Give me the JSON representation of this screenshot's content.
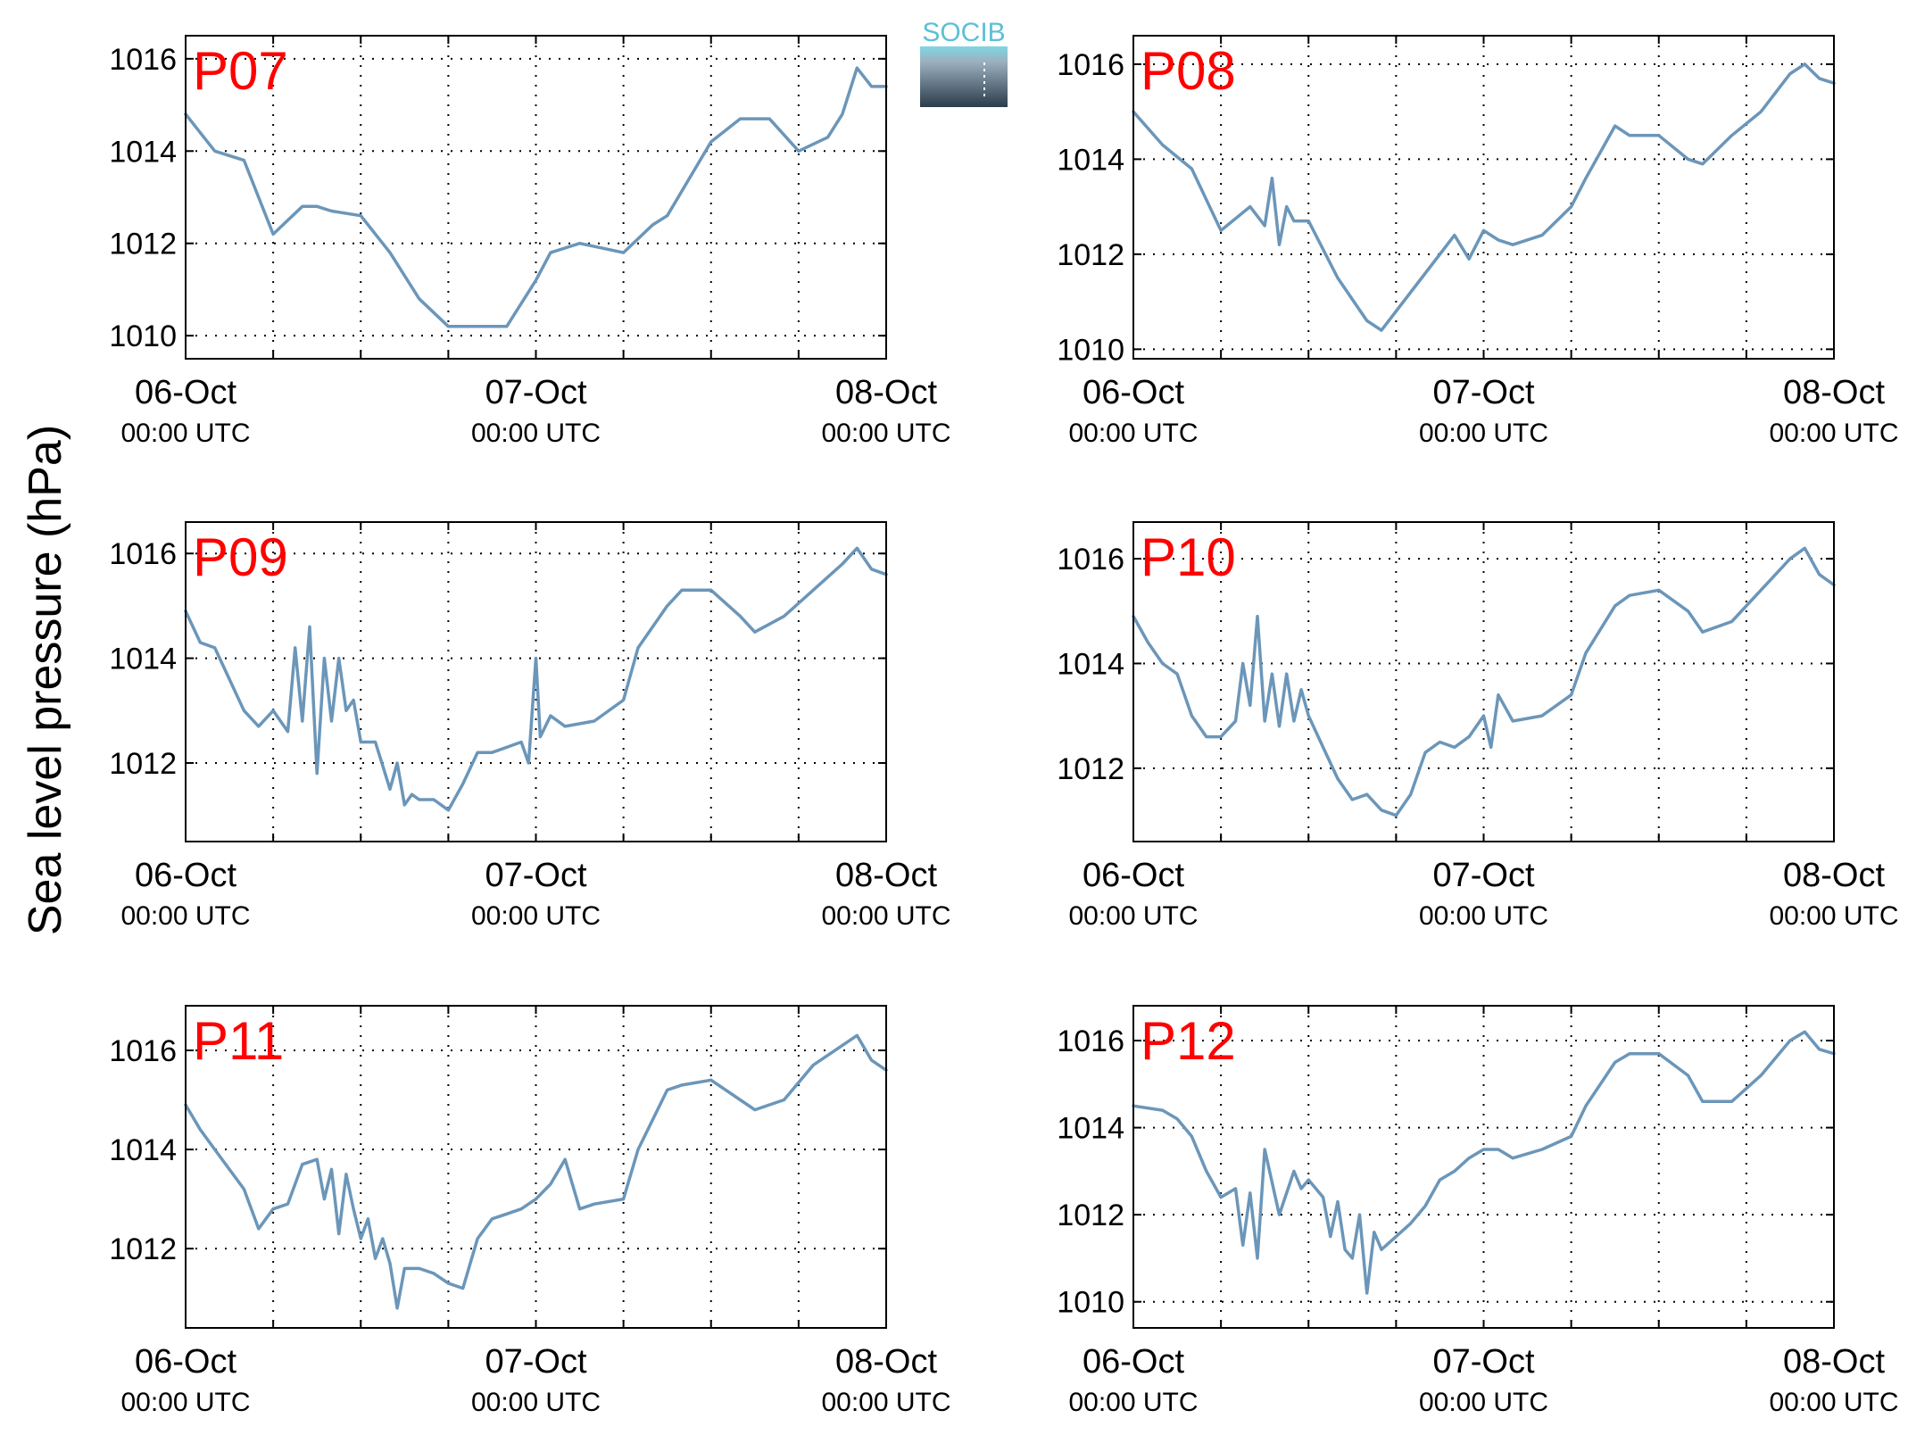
{
  "figure": {
    "ylabel": "Sea level pressure (hPa)",
    "logo_text": "SOCIB",
    "line_color": "#6b96b9",
    "station_label_color": "#ff0000"
  },
  "chart_data": [
    {
      "type": "line",
      "station": "P07",
      "x_ticks": [
        {
          "day": "06-Oct",
          "time": "00:00 UTC"
        },
        {
          "day": "07-Oct",
          "time": "00:00 UTC"
        },
        {
          "day": "08-Oct",
          "time": "00:00 UTC"
        }
      ],
      "ylim": [
        1009.5,
        1016.5
      ],
      "yticks": [
        "1010",
        "1012",
        "1014",
        "1016"
      ],
      "grid": true,
      "hours": [
        0,
        2,
        4,
        6,
        8,
        9,
        10,
        12,
        14,
        16,
        18,
        20,
        22,
        24,
        25,
        27,
        30,
        32,
        33,
        36,
        38,
        40,
        42,
        44,
        45,
        46,
        47,
        48
      ],
      "values": [
        1014.8,
        1014.0,
        1013.8,
        1012.2,
        1012.8,
        1012.8,
        1012.7,
        1012.6,
        1011.8,
        1010.8,
        1010.2,
        1010.2,
        1010.2,
        1011.2,
        1011.8,
        1012.0,
        1011.8,
        1012.4,
        1012.6,
        1014.2,
        1014.7,
        1014.7,
        1014.0,
        1014.3,
        1014.8,
        1015.8,
        1015.4,
        1015.4
      ]
    },
    {
      "type": "line",
      "station": "P08",
      "x_ticks": [
        {
          "day": "06-Oct",
          "time": "00:00 UTC"
        },
        {
          "day": "07-Oct",
          "time": "00:00 UTC"
        },
        {
          "day": "08-Oct",
          "time": "00:00 UTC"
        }
      ],
      "ylim": [
        1009.8,
        1016.6
      ],
      "yticks": [
        "1010",
        "1012",
        "1014",
        "1016"
      ],
      "grid": true,
      "hours": [
        0,
        2,
        4,
        6,
        8,
        9,
        9.5,
        10,
        10.5,
        11,
        12,
        14,
        16,
        17,
        19,
        20.5,
        22,
        23,
        24,
        25,
        26,
        28,
        30,
        31,
        33,
        34,
        36,
        38,
        39,
        41,
        43,
        45,
        46,
        47,
        48
      ],
      "values": [
        1015.0,
        1014.3,
        1013.8,
        1012.5,
        1013.0,
        1012.6,
        1013.6,
        1012.2,
        1013.0,
        1012.7,
        1012.7,
        1011.5,
        1010.6,
        1010.4,
        1011.2,
        1011.8,
        1012.4,
        1011.9,
        1012.5,
        1012.3,
        1012.2,
        1012.4,
        1013.0,
        1013.6,
        1014.7,
        1014.5,
        1014.5,
        1014.0,
        1013.9,
        1014.5,
        1015.0,
        1015.8,
        1016.0,
        1015.7,
        1015.6
      ]
    },
    {
      "type": "line",
      "station": "P09",
      "x_ticks": [
        {
          "day": "06-Oct",
          "time": "00:00 UTC"
        },
        {
          "day": "07-Oct",
          "time": "00:00 UTC"
        },
        {
          "day": "08-Oct",
          "time": "00:00 UTC"
        }
      ],
      "ylim": [
        1010.5,
        1016.6
      ],
      "yticks": [
        "1012",
        "1014",
        "1016"
      ],
      "grid": true,
      "hours": [
        0,
        1,
        2,
        4,
        5,
        6,
        7,
        7.5,
        8,
        8.5,
        9,
        9.5,
        10,
        10.5,
        11,
        11.5,
        12,
        13,
        14,
        14.5,
        15,
        15.5,
        16,
        17,
        18,
        19,
        20,
        21,
        22,
        23,
        23.5,
        24,
        24.3,
        25,
        26,
        28,
        30,
        31,
        33,
        34,
        36,
        38,
        39,
        41,
        43,
        45,
        46,
        47,
        48
      ],
      "values": [
        1014.9,
        1014.3,
        1014.2,
        1013.0,
        1012.7,
        1013.0,
        1012.6,
        1014.2,
        1012.8,
        1014.6,
        1011.8,
        1014.0,
        1012.8,
        1014.0,
        1013.0,
        1013.2,
        1012.4,
        1012.4,
        1011.5,
        1012.0,
        1011.2,
        1011.4,
        1011.3,
        1011.3,
        1011.1,
        1011.6,
        1012.2,
        1012.2,
        1012.3,
        1012.4,
        1012.0,
        1014.0,
        1012.5,
        1012.9,
        1012.7,
        1012.8,
        1013.2,
        1014.2,
        1015.0,
        1015.3,
        1015.3,
        1014.8,
        1014.5,
        1014.8,
        1015.3,
        1015.8,
        1016.1,
        1015.7,
        1015.6
      ]
    },
    {
      "type": "line",
      "station": "P10",
      "x_ticks": [
        {
          "day": "06-Oct",
          "time": "00:00 UTC"
        },
        {
          "day": "07-Oct",
          "time": "00:00 UTC"
        },
        {
          "day": "08-Oct",
          "time": "00:00 UTC"
        }
      ],
      "ylim": [
        1010.6,
        1016.7
      ],
      "yticks": [
        "1012",
        "1014",
        "1016"
      ],
      "grid": true,
      "hours": [
        0,
        1,
        2,
        3,
        4,
        5,
        6,
        7,
        7.5,
        8,
        8.5,
        9,
        9.5,
        10,
        10.5,
        11,
        11.5,
        12,
        13,
        14,
        15,
        16,
        17,
        18,
        19,
        20,
        21,
        22,
        23,
        24,
        24.5,
        25,
        26,
        28,
        30,
        31,
        33,
        34,
        36,
        38,
        39,
        41,
        43,
        45,
        46,
        47,
        48
      ],
      "values": [
        1014.9,
        1014.4,
        1014.0,
        1013.8,
        1013.0,
        1012.6,
        1012.6,
        1012.9,
        1014.0,
        1013.2,
        1014.9,
        1012.9,
        1013.8,
        1012.8,
        1013.8,
        1012.9,
        1013.5,
        1013.0,
        1012.4,
        1011.8,
        1011.4,
        1011.5,
        1011.2,
        1011.1,
        1011.5,
        1012.3,
        1012.5,
        1012.4,
        1012.6,
        1013.0,
        1012.4,
        1013.4,
        1012.9,
        1013.0,
        1013.4,
        1014.2,
        1015.1,
        1015.3,
        1015.4,
        1015.0,
        1014.6,
        1014.8,
        1015.4,
        1016.0,
        1016.2,
        1015.7,
        1015.5
      ]
    },
    {
      "type": "line",
      "station": "P11",
      "x_ticks": [
        {
          "day": "06-Oct",
          "time": "00:00 UTC"
        },
        {
          "day": "07-Oct",
          "time": "00:00 UTC"
        },
        {
          "day": "08-Oct",
          "time": "00:00 UTC"
        }
      ],
      "ylim": [
        1010.4,
        1016.9
      ],
      "yticks": [
        "1012",
        "1014",
        "1016"
      ],
      "grid": true,
      "hours": [
        0,
        1,
        2,
        4,
        5,
        6,
        7,
        8,
        9,
        9.5,
        10,
        10.5,
        11,
        11.5,
        12,
        12.5,
        13,
        13.5,
        14,
        14.5,
        15,
        16,
        17,
        18,
        19,
        20,
        21,
        22,
        23,
        24,
        25,
        26,
        27,
        28,
        30,
        31,
        33,
        34,
        36,
        38,
        39,
        41,
        43,
        45,
        46,
        47,
        48
      ],
      "values": [
        1014.9,
        1014.4,
        1014.0,
        1013.2,
        1012.4,
        1012.8,
        1012.9,
        1013.7,
        1013.8,
        1013.0,
        1013.6,
        1012.3,
        1013.5,
        1012.8,
        1012.2,
        1012.6,
        1011.8,
        1012.2,
        1011.7,
        1010.8,
        1011.6,
        1011.6,
        1011.5,
        1011.3,
        1011.2,
        1012.2,
        1012.6,
        1012.7,
        1012.8,
        1013.0,
        1013.3,
        1013.8,
        1012.8,
        1012.9,
        1013.0,
        1014.0,
        1015.2,
        1015.3,
        1015.4,
        1015.0,
        1014.8,
        1015.0,
        1015.7,
        1016.1,
        1016.3,
        1015.8,
        1015.6
      ]
    },
    {
      "type": "line",
      "station": "P12",
      "x_ticks": [
        {
          "day": "06-Oct",
          "time": "00:00 UTC"
        },
        {
          "day": "07-Oct",
          "time": "00:00 UTC"
        },
        {
          "day": "08-Oct",
          "time": "00:00 UTC"
        }
      ],
      "ylim": [
        1009.4,
        1016.8
      ],
      "yticks": [
        "1010",
        "1012",
        "1014",
        "1016"
      ],
      "grid": true,
      "hours": [
        0,
        2,
        3,
        4,
        5,
        6,
        7,
        7.5,
        8,
        8.5,
        9,
        10,
        11,
        11.5,
        12,
        13,
        13.5,
        14,
        14.5,
        15,
        15.5,
        16,
        16.5,
        17,
        18,
        19,
        20,
        21,
        22,
        23,
        24,
        25,
        26,
        28,
        30,
        31,
        33,
        34,
        36,
        38,
        39,
        40,
        41,
        43,
        45,
        46,
        47,
        48
      ],
      "values": [
        1014.5,
        1014.4,
        1014.2,
        1013.8,
        1013.0,
        1012.4,
        1012.6,
        1011.3,
        1012.5,
        1011.0,
        1013.5,
        1012.0,
        1013.0,
        1012.6,
        1012.8,
        1012.4,
        1011.5,
        1012.3,
        1011.2,
        1011.0,
        1012.0,
        1010.2,
        1011.6,
        1011.2,
        1011.5,
        1011.8,
        1012.2,
        1012.8,
        1013.0,
        1013.3,
        1013.5,
        1013.5,
        1013.3,
        1013.5,
        1013.8,
        1014.5,
        1015.5,
        1015.7,
        1015.7,
        1015.2,
        1014.6,
        1014.6,
        1014.6,
        1015.2,
        1016.0,
        1016.2,
        1015.8,
        1015.7
      ]
    }
  ]
}
